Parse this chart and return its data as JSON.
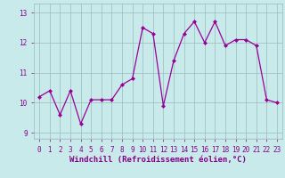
{
  "x": [
    0,
    1,
    2,
    3,
    4,
    5,
    6,
    7,
    8,
    9,
    10,
    11,
    12,
    13,
    14,
    15,
    16,
    17,
    18,
    19,
    20,
    21,
    22,
    23
  ],
  "y": [
    10.2,
    10.4,
    9.6,
    10.4,
    9.3,
    10.1,
    10.1,
    10.1,
    10.6,
    10.8,
    12.5,
    12.3,
    9.9,
    11.4,
    12.3,
    12.7,
    12.0,
    12.7,
    11.9,
    12.1,
    12.1,
    11.9,
    10.1,
    10.0
  ],
  "line_color": "#990099",
  "marker": "D",
  "marker_size": 2.0,
  "bg_color": "#c8eaea",
  "grid_color": "#99bbbb",
  "xlabel": "Windchill (Refroidissement éolien,°C)",
  "ylim": [
    8.8,
    13.3
  ],
  "xlim": [
    -0.5,
    23.5
  ],
  "yticks": [
    9,
    10,
    11,
    12,
    13
  ],
  "xticks": [
    0,
    1,
    2,
    3,
    4,
    5,
    6,
    7,
    8,
    9,
    10,
    11,
    12,
    13,
    14,
    15,
    16,
    17,
    18,
    19,
    20,
    21,
    22,
    23
  ],
  "tick_color": "#880088",
  "label_fontsize": 6.5,
  "tick_fontsize": 5.5,
  "linewidth": 0.9
}
